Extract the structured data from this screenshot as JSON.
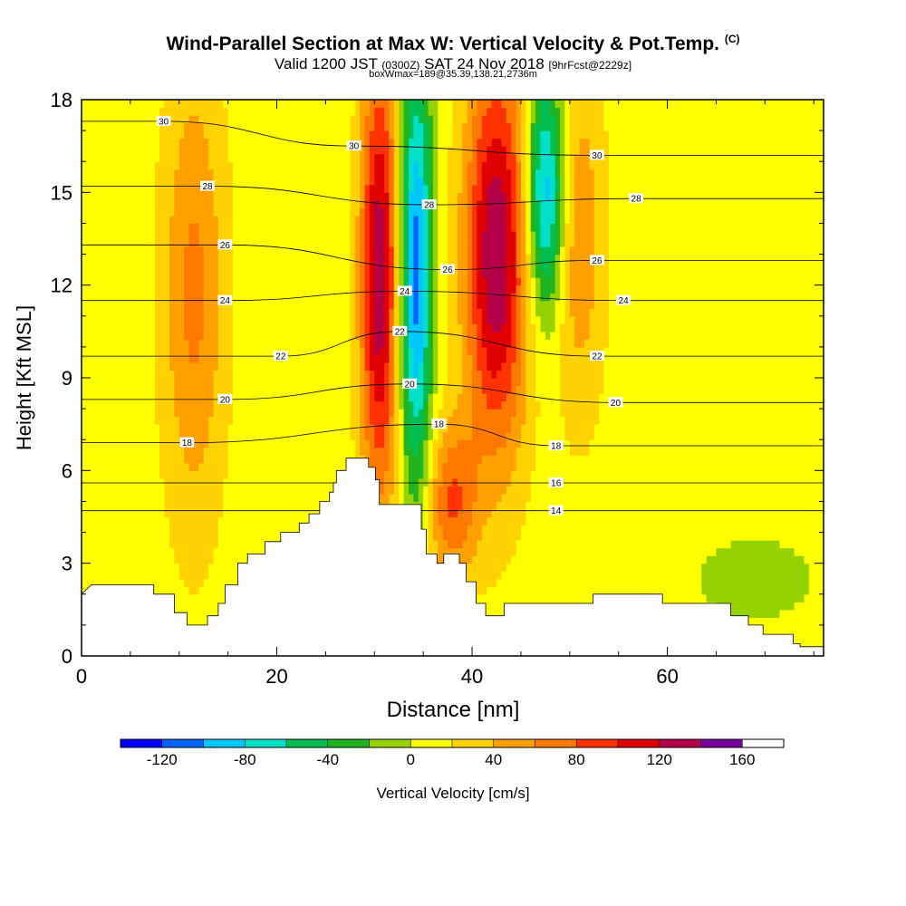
{
  "header": {
    "title": "Wind-Parallel Section at Max W: Vertical Velocity & Pot.Temp.",
    "copyright": "(C)",
    "valid_prefix": "Valid 1200 JST",
    "valid_utc": "(0300Z)",
    "valid_date": "SAT 24 Nov 2018",
    "forecast_note": "[9hrFcst@2229z]",
    "box_note": "boxWmax=189@35.39,138.21,2736m"
  },
  "colors": {
    "scale": [
      "#0000ff",
      "#0064ff",
      "#00c8ff",
      "#00e1c8",
      "#00be50",
      "#21b421",
      "#96d200",
      "#ffff00",
      "#ffd200",
      "#ffa000",
      "#ff7800",
      "#ff3200",
      "#e10000",
      "#b40046",
      "#7800a0"
    ],
    "terrain": "#ffffff",
    "contour": "#000000"
  },
  "chart_data": {
    "type": "heatmap",
    "xlabel": "Distance [nm]",
    "ylabel": "Height [Kft MSL]",
    "xlim": [
      0,
      76
    ],
    "ylim": [
      0,
      18
    ],
    "x_ticks": [
      0,
      20,
      40,
      60
    ],
    "y_ticks": [
      0,
      3,
      6,
      9,
      12,
      15,
      18
    ],
    "colorbar": {
      "label": "Vertical Velocity [cm/s]",
      "min": -140,
      "max": 180,
      "step": 20,
      "tick_labels": [
        -120,
        -80,
        -40,
        0,
        40,
        80,
        120,
        160
      ]
    },
    "vertical_velocity_features": [
      {
        "x_range": [
          9,
          14
        ],
        "z_range": [
          6,
          17.5
        ],
        "peak_cm_s": 55
      },
      {
        "x_range": [
          29,
          32
        ],
        "z_range": [
          6.5,
          18
        ],
        "peak_cm_s": 125
      },
      {
        "x_range": [
          33,
          35.5
        ],
        "z_range": [
          7,
          18
        ],
        "peak_cm_s": -120
      },
      {
        "x_range": [
          36,
          40
        ],
        "z_range": [
          3,
          7
        ],
        "peak_cm_s": 70
      },
      {
        "x_range": [
          40,
          45
        ],
        "z_range": [
          8,
          18
        ],
        "peak_cm_s": 130
      },
      {
        "x_range": [
          46,
          49
        ],
        "z_range": [
          12,
          18
        ],
        "peak_cm_s": -110
      },
      {
        "x_range": [
          49,
          53
        ],
        "z_range": [
          9,
          18
        ],
        "peak_cm_s": 45
      },
      {
        "x_range": [
          62,
          76
        ],
        "z_range": [
          1,
          4
        ],
        "peak_cm_s": -15
      }
    ],
    "potential_temperature_labels": [
      {
        "value": 30,
        "x": 8.4,
        "z": 17.3
      },
      {
        "value": 30,
        "x": 27.9,
        "z": 16.5
      },
      {
        "value": 30,
        "x": 52.8,
        "z": 16.2
      },
      {
        "value": 28,
        "x": 12.9,
        "z": 15.2
      },
      {
        "value": 28,
        "x": 35.6,
        "z": 14.6
      },
      {
        "value": 28,
        "x": 56.8,
        "z": 14.8
      },
      {
        "value": 26,
        "x": 14.7,
        "z": 13.3
      },
      {
        "value": 26,
        "x": 37.5,
        "z": 12.5
      },
      {
        "value": 26,
        "x": 52.8,
        "z": 12.8
      },
      {
        "value": 24,
        "x": 14.7,
        "z": 11.5
      },
      {
        "value": 24,
        "x": 33.1,
        "z": 11.8
      },
      {
        "value": 24,
        "x": 55.5,
        "z": 11.5
      },
      {
        "value": 22,
        "x": 20.4,
        "z": 9.7
      },
      {
        "value": 22,
        "x": 32.6,
        "z": 10.5
      },
      {
        "value": 22,
        "x": 52.8,
        "z": 9.7
      },
      {
        "value": 20,
        "x": 14.7,
        "z": 8.3
      },
      {
        "value": 20,
        "x": 33.6,
        "z": 8.8
      },
      {
        "value": 20,
        "x": 54.7,
        "z": 8.2
      },
      {
        "value": 18,
        "x": 10.8,
        "z": 6.9
      },
      {
        "value": 18,
        "x": 36.6,
        "z": 7.5
      },
      {
        "value": 18,
        "x": 48.6,
        "z": 6.8
      },
      {
        "value": 16,
        "x": 48.6,
        "z": 5.6
      },
      {
        "value": 14,
        "x": 48.6,
        "z": 4.7
      }
    ],
    "terrain_height_kft": [
      [
        0,
        2
      ],
      [
        1,
        2.3
      ],
      [
        7.4,
        2.3
      ],
      [
        7.4,
        2
      ],
      [
        9.5,
        2
      ],
      [
        9.5,
        1.4
      ],
      [
        10.8,
        1.4
      ],
      [
        10.8,
        1
      ],
      [
        12.9,
        1
      ],
      [
        12.9,
        1.3
      ],
      [
        14,
        1.3
      ],
      [
        14,
        1.7
      ],
      [
        14.7,
        1.7
      ],
      [
        14.7,
        2.3
      ],
      [
        16,
        2.3
      ],
      [
        16,
        3
      ],
      [
        17,
        3
      ],
      [
        17,
        3.3
      ],
      [
        18.8,
        3.3
      ],
      [
        18.8,
        3.7
      ],
      [
        20.4,
        3.7
      ],
      [
        20.4,
        4
      ],
      [
        22.3,
        4
      ],
      [
        22.3,
        4.3
      ],
      [
        23.3,
        4.3
      ],
      [
        23.3,
        4.6
      ],
      [
        24.4,
        4.6
      ],
      [
        24.4,
        5
      ],
      [
        25.4,
        5
      ],
      [
        25.4,
        5.3
      ],
      [
        25.8,
        5.3
      ],
      [
        25.8,
        5.6
      ],
      [
        26.1,
        5.6
      ],
      [
        26.1,
        6
      ],
      [
        27.1,
        6
      ],
      [
        27.1,
        6.4
      ],
      [
        29.4,
        6.4
      ],
      [
        29.4,
        6.1
      ],
      [
        30.1,
        6.1
      ],
      [
        30.1,
        5.7
      ],
      [
        30.5,
        5.7
      ],
      [
        30.5,
        4.9
      ],
      [
        34.8,
        4.9
      ],
      [
        34.8,
        4.1
      ],
      [
        35.3,
        4.1
      ],
      [
        35.3,
        3.3
      ],
      [
        36.4,
        3.3
      ],
      [
        36.4,
        3
      ],
      [
        37.1,
        3
      ],
      [
        37.1,
        3.3
      ],
      [
        38.7,
        3.3
      ],
      [
        38.7,
        3
      ],
      [
        39.4,
        3
      ],
      [
        39.4,
        2.4
      ],
      [
        40.4,
        2.4
      ],
      [
        40.4,
        1.7
      ],
      [
        41.4,
        1.7
      ],
      [
        41.4,
        1.3
      ],
      [
        43.3,
        1.3
      ],
      [
        43.3,
        1.7
      ],
      [
        52.4,
        1.7
      ],
      [
        52.4,
        2
      ],
      [
        59.5,
        2
      ],
      [
        59.5,
        1.7
      ],
      [
        66.5,
        1.7
      ],
      [
        66.5,
        1.3
      ],
      [
        68.3,
        1.3
      ],
      [
        68.3,
        1
      ],
      [
        69.8,
        1
      ],
      [
        69.8,
        0.7
      ],
      [
        72.9,
        0.7
      ],
      [
        72.9,
        0.4
      ],
      [
        73.6,
        0.4
      ],
      [
        73.6,
        0.3
      ],
      [
        76,
        0.3
      ]
    ]
  }
}
